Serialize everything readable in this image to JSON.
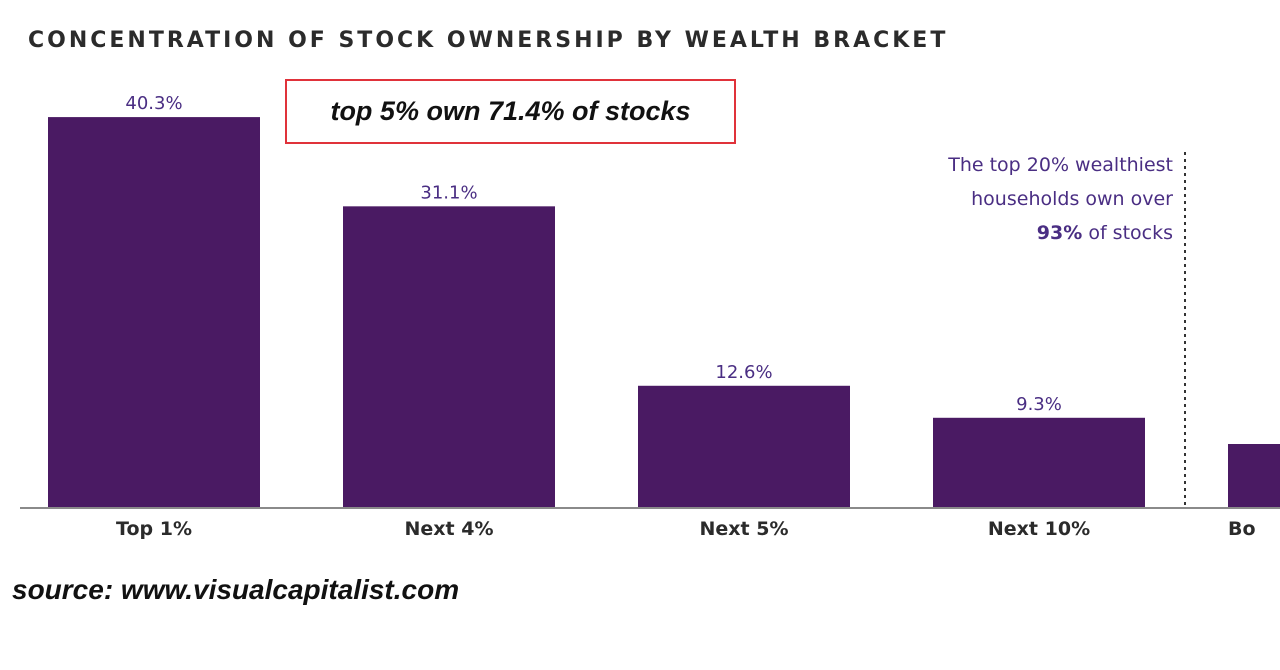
{
  "annotation": {
    "line1": "The top 20% wealthiest",
    "line2": "households own over",
    "line3_bold": "93%",
    "line3_rest": " of stocks"
  },
  "callout": {
    "text": "top 5% own 71.4% of stocks"
  },
  "source": "source: www.visualcapitalist.com",
  "chart_data": {
    "type": "bar",
    "title": "CONCENTRATION OF STOCK OWNERSHIP BY WEALTH BRACKET",
    "xlabel": "",
    "ylabel": "",
    "categories": [
      "Top 1%",
      "Next 4%",
      "Next 5%",
      "Next 10%",
      "Bo"
    ],
    "values": [
      40.3,
      31.1,
      12.6,
      9.3,
      null
    ],
    "value_labels": [
      "40.3%",
      "31.1%",
      "12.6%",
      "9.3%",
      ""
    ],
    "ylim": [
      0,
      45
    ],
    "grid": false,
    "bar_color": "#4a1a63",
    "axis_color": "#8a8a8a",
    "label_color": "#4a2e83",
    "note": "Fifth bar is cut off at the right edge; its value label is not visible."
  }
}
